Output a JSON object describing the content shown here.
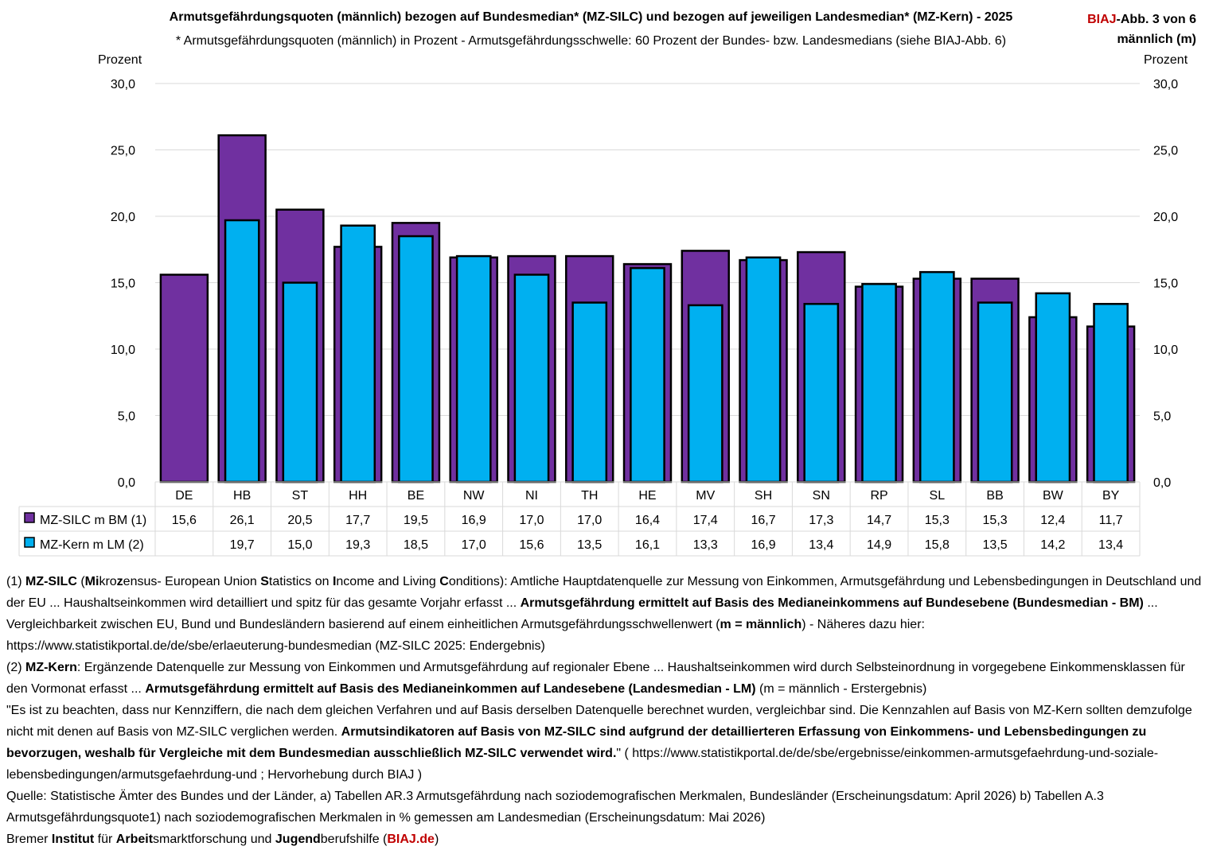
{
  "header": {
    "title": "Armutsgefährdungsquoten (männlich) bezogen auf Bundesmedian* (MZ-SILC) und bezogen auf jeweiligen Landesmedian* (MZ-Kern) - 2025",
    "subtitle": "* Armutsgefährdungsquoten (männlich) in Prozent -  Armutsgefährdungsschwelle: 60 Prozent der Bundes- bzw. Landesmedians (siehe BIAJ-Abb. 6)",
    "badge_brand": "BIAJ",
    "badge_rest": "-Abb. 3 von 6",
    "badge_line2": "männlich (m)"
  },
  "chart_data": {
    "type": "bar",
    "title": "Armutsgefährdungsquoten (männlich) bezogen auf Bundesmedian* (MZ-SILC) und bezogen auf jeweiligen Landesmedian* (MZ-Kern) - 2025",
    "ylabel": "Prozent",
    "ylabel_right": "Prozent",
    "ylim": [
      0,
      30
    ],
    "yticks": [
      "0,0",
      "5,0",
      "10,0",
      "15,0",
      "20,0",
      "25,0",
      "30,0"
    ],
    "grid": true,
    "categories": [
      "DE",
      "HB",
      "ST",
      "HH",
      "BE",
      "NW",
      "NI",
      "TH",
      "HE",
      "MV",
      "SH",
      "SN",
      "RP",
      "SL",
      "BB",
      "BW",
      "BY"
    ],
    "series": [
      {
        "name": "MZ-SILC m BM (1)",
        "color": "#7030a0",
        "values": [
          15.6,
          26.1,
          20.5,
          17.7,
          19.5,
          16.9,
          17.0,
          17.0,
          16.4,
          17.4,
          16.7,
          17.3,
          14.7,
          15.3,
          15.3,
          12.4,
          11.7
        ],
        "labels": [
          "15,6",
          "26,1",
          "20,5",
          "17,7",
          "19,5",
          "16,9",
          "17,0",
          "17,0",
          "16,4",
          "17,4",
          "16,7",
          "17,3",
          "14,7",
          "15,3",
          "15,3",
          "12,4",
          "11,7"
        ]
      },
      {
        "name": "MZ-Kern m LM (2)",
        "color": "#00b0f0",
        "values": [
          null,
          19.7,
          15.0,
          19.3,
          18.5,
          17.0,
          15.6,
          13.5,
          16.1,
          13.3,
          16.9,
          13.4,
          14.9,
          15.8,
          13.5,
          14.2,
          13.4
        ],
        "labels": [
          "",
          "19,7",
          "15,0",
          "19,3",
          "18,5",
          "17,0",
          "15,6",
          "13,5",
          "16,1",
          "13,3",
          "16,9",
          "13,4",
          "14,9",
          "15,8",
          "13,5",
          "14,2",
          "13,4"
        ]
      }
    ],
    "legend": "data-table"
  },
  "notes": {
    "n1_a": "(1) ",
    "n1_b": "MZ-SILC",
    "n1_c": " (",
    "n1_d": "Mi",
    "n1_e": "kro",
    "n1_f": "z",
    "n1_g": "ensus- European Union ",
    "n1_h": "S",
    "n1_i": "tatistics on ",
    "n1_j": "I",
    "n1_k": "ncome and Living ",
    "n1_l": "C",
    "n1_m": "onditions): Amtliche Hauptdatenquelle zur Messung von Einkommen, Armutsgefährdung und Lebensbedingungen in Deutschland und der EU ... Haushaltseinkommen wird detailliert und spitz für das gesamte Vorjahr erfasst ... ",
    "n1_n": "Armutsgefährdung ermittelt auf Basis des Medianeinkommens auf Bundesebene (Bundesmedian - BM)",
    "n1_o": " ... Vergleichbarkeit zwischen EU, Bund und Bundesländern basierend auf einem einheitlichen Armutsgefährdungsschwellenwert (",
    "n1_p": "m = männlich",
    "n1_q": ") - Näheres dazu hier: https://www.statistikportal.de/de/sbe/erlaeuterung-bundesmedian (MZ-SILC 2025: Endergebnis)",
    "n2_a": "(2) ",
    "n2_b": "MZ-Kern",
    "n2_c": ": Ergänzende Datenquelle zur Messung von Einkommen und Armutsgefährdung auf regionaler Ebene ... Haushaltseinkommen wird durch Selbsteinordnung in vorgegebene Einkommensklassen für den Vormonat erfasst ... ",
    "n2_d": "Armutsgefährdung ermittelt auf Basis des Medianeinkommen auf Landesebene (Landesmedian - LM)",
    "n2_e": " (m = männlich - Erstergebnis)",
    "n3_a": "\"Es ist zu beachten, dass nur Kennziffern, die nach dem gleichen Verfahren und auf Basis derselben Datenquelle berechnet wurden, vergleichbar sind. Die Kennzahlen auf Basis von MZ-Kern sollten demzufolge nicht mit denen auf Basis von MZ-SILC verglichen werden. ",
    "n3_b": "Armutsindikatoren auf Basis von MZ-SILC sind aufgrund der detaillierteren Erfassung von Einkommens- und Lebensbedingungen zu bevorzugen, weshalb für Vergleiche mit dem Bundesmedian ausschließlich MZ-SILC verwendet wird.",
    "n3_c": "\" ( https://www.statistikportal.de/de/sbe/ergebnisse/einkommen-armutsgefaehrdung-und-soziale-lebensbedingungen/armutsgefaehrdung-und ; Hervorhebung durch BIAJ )",
    "source": "Quelle: Statistische Ämter des Bundes und der Länder, a) Tabellen AR.3 Armutsgefährdung nach soziodemografischen Merkmalen, Bundesländer (Erscheinungsdatum: April 2026) b) Tabellen A.3 Armutsgefährdungsquote1) nach soziodemografischen Merkmalen in % gemessen am Landesmedian (Erscheinungsdatum: Mai 2026)",
    "f_1": "Bremer ",
    "f_2": "Institut",
    "f_3": " für ",
    "f_4": "Arbeit",
    "f_5": "smarktforschung und ",
    "f_6": "Jugend",
    "f_7": "berufshilfe (",
    "f_8": "BIAJ.de",
    "f_9": ")"
  }
}
